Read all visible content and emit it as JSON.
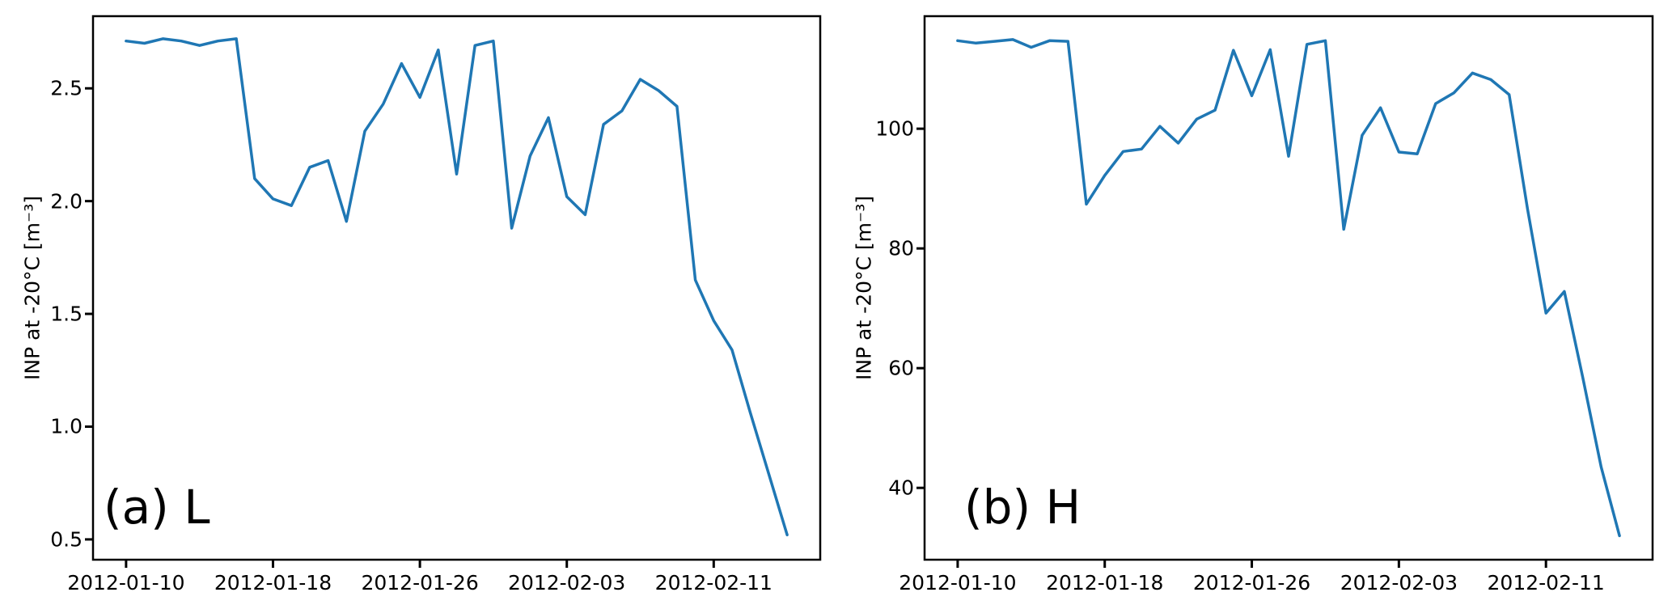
{
  "figure": {
    "background": "#ffffff",
    "line_color": "#1f77b4",
    "axis_color": "#000000"
  },
  "chart_data": [
    {
      "type": "line",
      "panel_label": "(a) L",
      "ylabel": "INP at -20°C [m⁻³]",
      "xlabel": "",
      "grid": false,
      "legend": null,
      "x": [
        "2012-01-10",
        "2012-01-11",
        "2012-01-12",
        "2012-01-13",
        "2012-01-14",
        "2012-01-15",
        "2012-01-16",
        "2012-01-17",
        "2012-01-18",
        "2012-01-19",
        "2012-01-20",
        "2012-01-21",
        "2012-01-22",
        "2012-01-23",
        "2012-01-24",
        "2012-01-25",
        "2012-01-26",
        "2012-01-27",
        "2012-01-28",
        "2012-01-29",
        "2012-01-30",
        "2012-01-31",
        "2012-02-01",
        "2012-02-02",
        "2012-02-03",
        "2012-02-04",
        "2012-02-05",
        "2012-02-06",
        "2012-02-07",
        "2012-02-08",
        "2012-02-09",
        "2012-02-10",
        "2012-02-11",
        "2012-02-12",
        "2012-02-13",
        "2012-02-14",
        "2012-02-15"
      ],
      "values": [
        2.71,
        2.7,
        2.72,
        2.71,
        2.69,
        2.71,
        2.72,
        2.1,
        2.01,
        1.98,
        2.15,
        2.18,
        1.91,
        2.31,
        2.43,
        2.61,
        2.46,
        2.67,
        2.12,
        2.69,
        2.71,
        1.88,
        2.2,
        2.37,
        2.02,
        1.94,
        2.34,
        2.4,
        2.54,
        2.49,
        2.42,
        1.65,
        1.47,
        1.34,
        1.06,
        0.79,
        0.52
      ],
      "xtick_labels": [
        "2012-01-10",
        "2012-01-18",
        "2012-01-26",
        "2012-02-03",
        "2012-02-11"
      ],
      "ytick_values": [
        0.5,
        1.0,
        1.5,
        2.0,
        2.5
      ],
      "ytick_labels": [
        "0.5",
        "1.0",
        "1.5",
        "2.0",
        "2.5"
      ],
      "ylim": [
        0.41,
        2.82
      ],
      "xlim_days": [
        -1.8,
        37.8
      ]
    },
    {
      "type": "line",
      "panel_label": "(b) H",
      "ylabel": "INP at -20°C [m⁻³]",
      "xlabel": "",
      "grid": false,
      "legend": null,
      "x": [
        "2012-01-10",
        "2012-01-11",
        "2012-01-12",
        "2012-01-13",
        "2012-01-14",
        "2012-01-15",
        "2012-01-16",
        "2012-01-17",
        "2012-01-18",
        "2012-01-19",
        "2012-01-20",
        "2012-01-21",
        "2012-01-22",
        "2012-01-23",
        "2012-01-24",
        "2012-01-25",
        "2012-01-26",
        "2012-01-27",
        "2012-01-28",
        "2012-01-29",
        "2012-01-30",
        "2012-01-31",
        "2012-02-01",
        "2012-02-02",
        "2012-02-03",
        "2012-02-04",
        "2012-02-05",
        "2012-02-06",
        "2012-02-07",
        "2012-02-08",
        "2012-02-09",
        "2012-02-10",
        "2012-02-11",
        "2012-02-12",
        "2012-02-13",
        "2012-02-14",
        "2012-02-15"
      ],
      "values": [
        114.7,
        114.3,
        114.6,
        114.9,
        113.6,
        114.7,
        114.6,
        87.4,
        92.2,
        96.2,
        96.6,
        100.4,
        97.6,
        101.6,
        103.1,
        113.1,
        105.5,
        113.2,
        95.4,
        114.1,
        114.7,
        83.2,
        98.9,
        103.5,
        96.1,
        95.8,
        104.2,
        106.0,
        109.3,
        108.2,
        105.7,
        86.5,
        69.2,
        72.8,
        58.5,
        43.5,
        32.0
      ],
      "xtick_labels": [
        "2012-01-10",
        "2012-01-18",
        "2012-01-26",
        "2012-02-03",
        "2012-02-11"
      ],
      "ytick_values": [
        40,
        60,
        80,
        100
      ],
      "ytick_labels": [
        "40",
        "60",
        "80",
        "100"
      ],
      "ylim": [
        28.0,
        118.8
      ],
      "xlim_days": [
        -1.8,
        37.8
      ]
    }
  ]
}
